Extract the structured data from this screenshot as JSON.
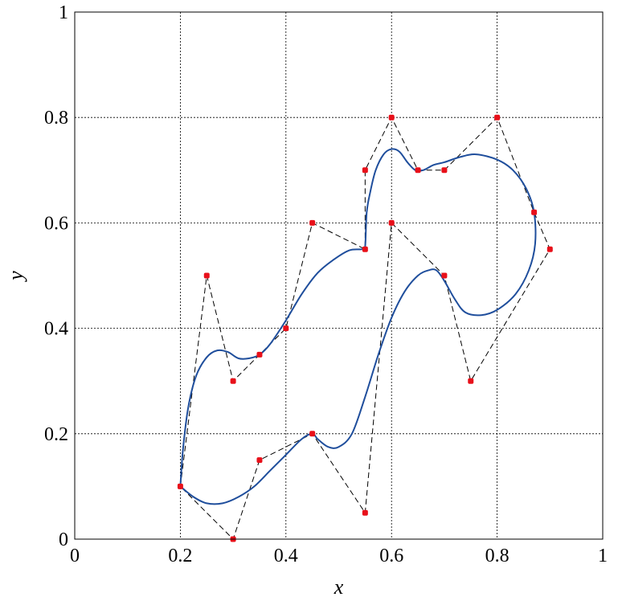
{
  "chart_data": {
    "type": "line",
    "title": "",
    "xlabel": "x",
    "ylabel": "y",
    "xlim": [
      0,
      1
    ],
    "ylim": [
      0,
      1
    ],
    "grid": true,
    "x_ticks": [
      "0",
      "0.2",
      "0.4",
      "0.6",
      "0.8",
      "1"
    ],
    "y_ticks": [
      "0",
      "0.2",
      "0.4",
      "0.6",
      "0.8",
      "1"
    ],
    "colors": {
      "control_points": "#e8101a",
      "curve": "#1f4e9c",
      "polygon": "#000000"
    },
    "series": [
      {
        "kind": "control-polygon",
        "style": "dashed",
        "points": [
          [
            0.2,
            0.1
          ],
          [
            0.25,
            0.5
          ],
          [
            0.3,
            0.3
          ],
          [
            0.35,
            0.35
          ],
          [
            0.4,
            0.4
          ],
          [
            0.45,
            0.6
          ],
          [
            0.55,
            0.55
          ],
          [
            0.55,
            0.7
          ],
          [
            0.6,
            0.8
          ],
          [
            0.65,
            0.7
          ],
          [
            0.7,
            0.7
          ],
          [
            0.8,
            0.8
          ],
          [
            0.87,
            0.62
          ],
          [
            0.9,
            0.55
          ],
          [
            0.75,
            0.3
          ],
          [
            0.7,
            0.5
          ],
          [
            0.6,
            0.6
          ],
          [
            0.55,
            0.05
          ],
          [
            0.45,
            0.2
          ],
          [
            0.35,
            0.15
          ],
          [
            0.3,
            0.0
          ],
          [
            0.2,
            0.1
          ]
        ]
      },
      {
        "kind": "smooth-curve",
        "style": "solid",
        "points": [
          [
            0.2,
            0.1
          ],
          [
            0.205,
            0.17
          ],
          [
            0.215,
            0.25
          ],
          [
            0.23,
            0.31
          ],
          [
            0.25,
            0.345
          ],
          [
            0.27,
            0.358
          ],
          [
            0.29,
            0.355
          ],
          [
            0.31,
            0.343
          ],
          [
            0.33,
            0.343
          ],
          [
            0.35,
            0.35
          ],
          [
            0.37,
            0.37
          ],
          [
            0.4,
            0.415
          ],
          [
            0.43,
            0.465
          ],
          [
            0.46,
            0.505
          ],
          [
            0.49,
            0.53
          ],
          [
            0.52,
            0.548
          ],
          [
            0.545,
            0.55
          ],
          [
            0.55,
            0.555
          ],
          [
            0.553,
            0.62
          ],
          [
            0.56,
            0.66
          ],
          [
            0.57,
            0.7
          ],
          [
            0.585,
            0.73
          ],
          [
            0.6,
            0.74
          ],
          [
            0.615,
            0.735
          ],
          [
            0.63,
            0.715
          ],
          [
            0.645,
            0.7
          ],
          [
            0.66,
            0.7
          ],
          [
            0.68,
            0.71
          ],
          [
            0.7,
            0.715
          ],
          [
            0.73,
            0.725
          ],
          [
            0.76,
            0.73
          ],
          [
            0.8,
            0.72
          ],
          [
            0.83,
            0.7
          ],
          [
            0.855,
            0.665
          ],
          [
            0.87,
            0.62
          ],
          [
            0.872,
            0.56
          ],
          [
            0.86,
            0.51
          ],
          [
            0.835,
            0.465
          ],
          [
            0.8,
            0.435
          ],
          [
            0.77,
            0.425
          ],
          [
            0.74,
            0.43
          ],
          [
            0.72,
            0.455
          ],
          [
            0.7,
            0.49
          ],
          [
            0.685,
            0.51
          ],
          [
            0.67,
            0.51
          ],
          [
            0.65,
            0.5
          ],
          [
            0.625,
            0.47
          ],
          [
            0.6,
            0.42
          ],
          [
            0.575,
            0.35
          ],
          [
            0.55,
            0.27
          ],
          [
            0.525,
            0.2
          ],
          [
            0.5,
            0.175
          ],
          [
            0.48,
            0.175
          ],
          [
            0.46,
            0.19
          ],
          [
            0.45,
            0.2
          ],
          [
            0.43,
            0.19
          ],
          [
            0.4,
            0.16
          ],
          [
            0.37,
            0.13
          ],
          [
            0.34,
            0.1
          ],
          [
            0.31,
            0.08
          ],
          [
            0.28,
            0.068
          ],
          [
            0.25,
            0.068
          ],
          [
            0.225,
            0.08
          ],
          [
            0.2,
            0.1
          ]
        ]
      }
    ]
  }
}
